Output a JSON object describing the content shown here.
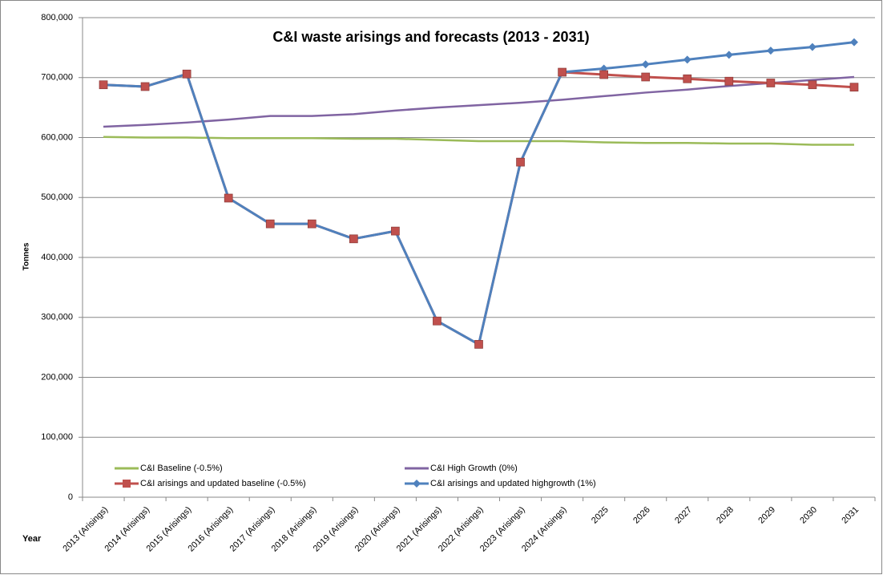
{
  "chart_data": {
    "type": "line",
    "title": "C&I waste arisings and forecasts (2013  - 2031)",
    "xlabel": "Year",
    "ylabel": "Tonnes",
    "categories": [
      "2013 (Arisings)",
      "2014 (Arisings)",
      "2015 (Arisings)",
      "2016 (Arisings)",
      "2017 (Arisings)",
      "2018 (Arisings)",
      "2019 (Arisings)",
      "2020 (Arisings)",
      "2021 (Arisings)",
      "2022 (Arisings)",
      "2023 (Arisings)",
      "2024 (Arisings)",
      "2025",
      "2026",
      "2027",
      "2028",
      "2029",
      "2030",
      "2031"
    ],
    "series": [
      {
        "name": "C&I Baseline (-0.5%)",
        "color": "#9bbb59",
        "values": [
          601000,
          600000,
          600000,
          599000,
          599000,
          599000,
          598000,
          598000,
          596000,
          594000,
          594000,
          594000,
          592000,
          591000,
          591000,
          590000,
          590000,
          588000,
          588000
        ]
      },
      {
        "name": "C&I High Growth (0%)",
        "color": "#8064a2",
        "values": [
          618000,
          621000,
          625000,
          630000,
          636000,
          636000,
          639000,
          645000,
          650000,
          654000,
          658000,
          663000,
          669000,
          675000,
          680000,
          686000,
          691000,
          696000,
          701000
        ]
      },
      {
        "name": "C&I arisings and updated baseline (-0.5%)",
        "color": "#c0504d",
        "marker": "square",
        "values": [
          688000,
          685000,
          706000,
          499000,
          456000,
          456000,
          431000,
          444000,
          294000,
          255000,
          559000,
          709000,
          705000,
          701000,
          698000,
          694000,
          691000,
          688000,
          684000
        ]
      },
      {
        "name": "C&I arisings and updated highgrowth (1%)",
        "color": "#4f81bd",
        "marker": "diamond",
        "values": [
          688000,
          685000,
          706000,
          499000,
          456000,
          456000,
          431000,
          444000,
          294000,
          255000,
          559000,
          709000,
          715000,
          722000,
          730000,
          738000,
          745000,
          751000,
          759000
        ]
      }
    ],
    "ylim": [
      0,
      800000
    ],
    "yticks": [
      0,
      {
        "value": 100000,
        "label": "100,000"
      },
      {
        "value": 200000,
        "label": "200,000"
      },
      {
        "value": 300000,
        "label": "300,000"
      },
      {
        "value": 400000,
        "label": "400,000"
      },
      {
        "value": 500000,
        "label": "500,000"
      },
      {
        "value": 600000,
        "label": "600,000"
      },
      {
        "value": 700000,
        "label": "700,000"
      },
      {
        "value": 800000,
        "label": "800,000"
      }
    ],
    "grid": true,
    "legend": "lower left"
  }
}
